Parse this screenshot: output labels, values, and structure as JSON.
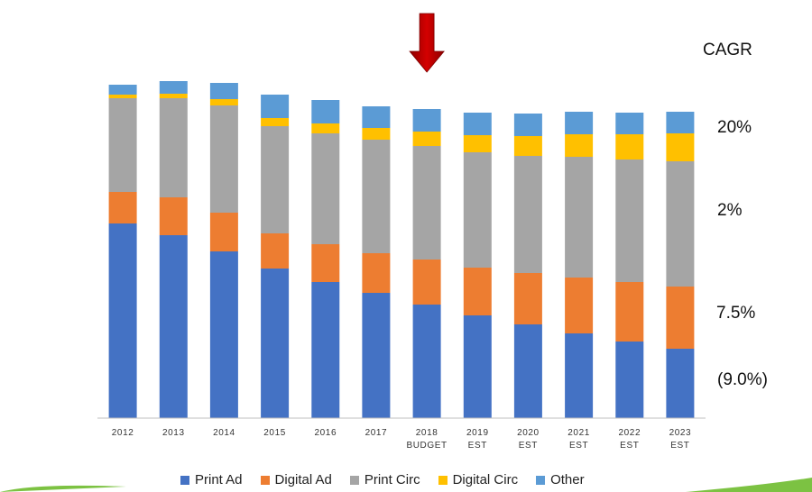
{
  "chart_data": {
    "type": "bar",
    "stacked": true,
    "categories": [
      "2012",
      "2013",
      "2014",
      "2015",
      "2016",
      "2017",
      "2018\nBUDGET",
      "2019\nEST",
      "2020\nEST",
      "2021\nEST",
      "2022\nEST",
      "2023\nEST"
    ],
    "series": [
      {
        "name": "Print Ad",
        "color": "#4472c4",
        "values": [
          216,
          203,
          185,
          166,
          151,
          139,
          126,
          114,
          104,
          94,
          85,
          77
        ]
      },
      {
        "name": "Digital Ad",
        "color": "#ed7d31",
        "values": [
          35,
          42,
          43,
          39,
          42,
          44,
          50,
          53,
          57,
          62,
          66,
          69
        ]
      },
      {
        "name": "Print Circ",
        "color": "#a5a5a5",
        "values": [
          104,
          110,
          119,
          119,
          123,
          126,
          126,
          128,
          130,
          134,
          136,
          139
        ]
      },
      {
        "name": "Digital Circ",
        "color": "#ffc000",
        "values": [
          4,
          5,
          7,
          9,
          11,
          13,
          16,
          19,
          22,
          25,
          28,
          31
        ]
      },
      {
        "name": "Other",
        "color": "#5b9bd5",
        "values": [
          11,
          14,
          18,
          26,
          26,
          24,
          25,
          25,
          25,
          25,
          24,
          24
        ]
      }
    ],
    "ylim": [
      0,
      430
    ],
    "grid": false,
    "legend_position": "bottom",
    "annotations": {
      "cagr_header": "CAGR",
      "cagr_values": [
        {
          "series": "Digital Circ",
          "text": "20%",
          "color": "#111111"
        },
        {
          "series": "Print Circ",
          "text": "2%",
          "color": "#111111"
        },
        {
          "series": "Digital Ad",
          "text": "7.5%",
          "color": "#111111"
        },
        {
          "series": "Print Ad",
          "text": "(9.0%)",
          "color": "#e00000"
        }
      ],
      "arrow_marker": {
        "category": "2018\nBUDGET",
        "color": "#c00000"
      }
    }
  }
}
